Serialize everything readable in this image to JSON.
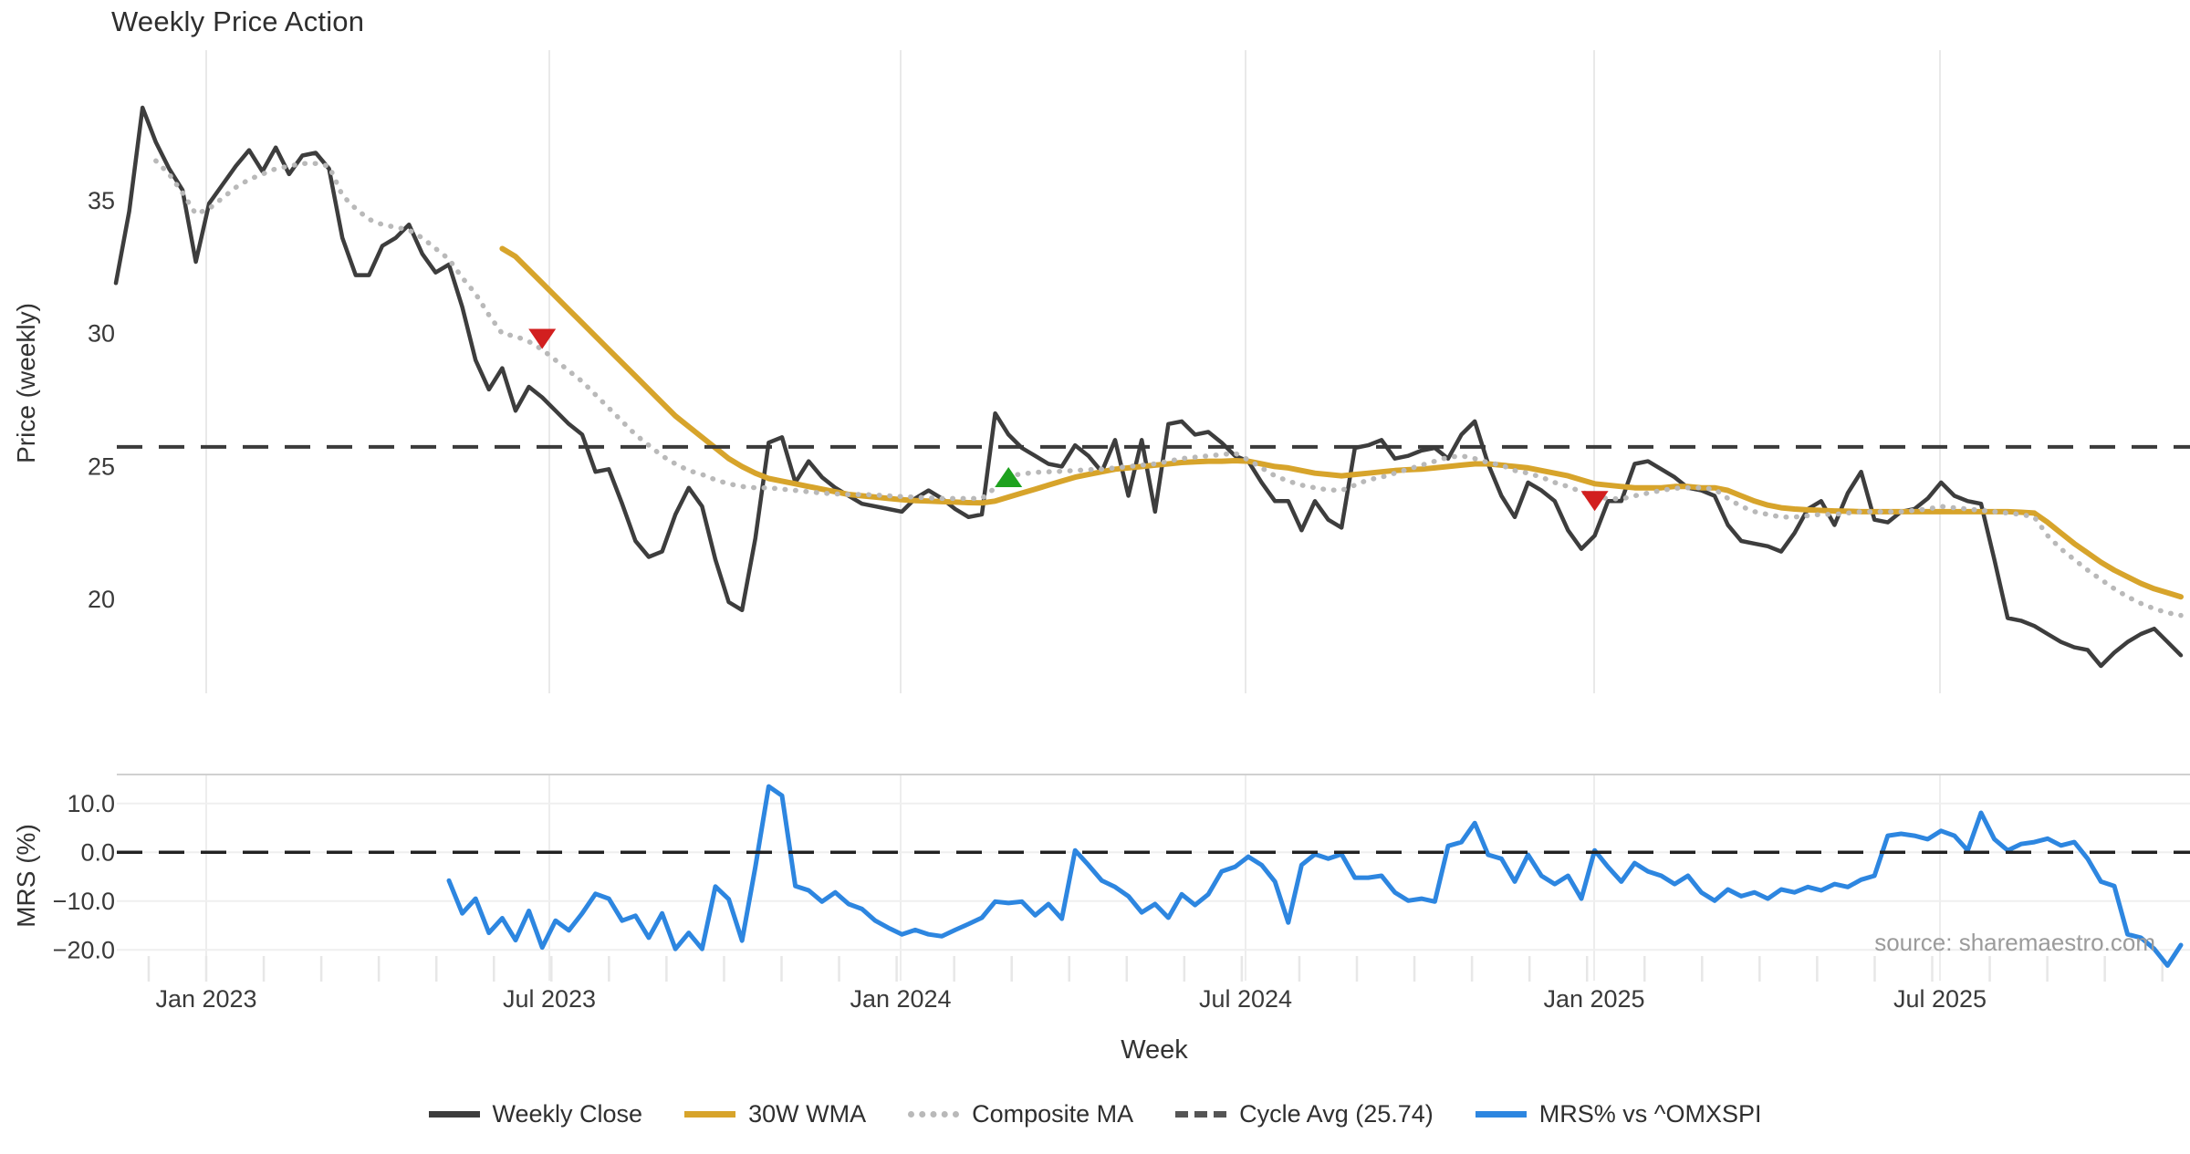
{
  "title": "Weekly Price Action",
  "source_note": "source: sharemaestro.com",
  "chart_data": {
    "type": "line",
    "title": "Weekly Price Action",
    "x_axis": {
      "label": "Week",
      "tick_labels": [
        "Jan 2023",
        "Jul 2023",
        "Jan 2024",
        "Jul 2024",
        "Jan 2025",
        "Jul 2025"
      ],
      "start_date": "2022-11-14",
      "frequency": "weekly",
      "n_points": 156
    },
    "panels": [
      {
        "name": "price-panel",
        "y_label": "Price (weekly)",
        "y_ticks": [
          "35",
          "30",
          "25",
          "20"
        ],
        "y_tick_values": [
          35,
          30,
          25,
          20
        ],
        "ylim": [
          16.5,
          40.7
        ],
        "grid": "vertical-only",
        "series": [
          {
            "name": "Weekly Close",
            "color": "#3d3d3d",
            "style": "solid",
            "width": 4.5,
            "start_index": 0,
            "values": [
              31.9,
              34.6,
              38.5,
              37.2,
              36.2,
              35.4,
              32.7,
              34.9,
              35.6,
              36.3,
              36.9,
              36.1,
              37.0,
              36.0,
              36.7,
              36.8,
              36.2,
              33.6,
              32.2,
              32.2,
              33.3,
              33.6,
              34.1,
              33.0,
              32.3,
              32.6,
              31.0,
              29.0,
              27.9,
              28.7,
              27.1,
              28.0,
              27.6,
              27.1,
              26.6,
              26.2,
              24.8,
              24.9,
              23.6,
              22.2,
              21.6,
              21.8,
              23.2,
              24.2,
              23.5,
              21.5,
              19.9,
              19.6,
              22.3,
              25.9,
              26.1,
              24.4,
              25.2,
              24.6,
              24.2,
              23.9,
              23.6,
              23.5,
              23.4,
              23.3,
              23.8,
              24.1,
              23.8,
              23.4,
              23.1,
              23.2,
              27.0,
              26.2,
              25.7,
              25.4,
              25.1,
              25.0,
              25.8,
              25.4,
              24.8,
              26.0,
              23.9,
              26.0,
              23.3,
              26.6,
              26.7,
              26.2,
              26.3,
              25.9,
              25.4,
              25.2,
              24.4,
              23.7,
              23.7,
              22.6,
              23.7,
              23.0,
              22.7,
              25.7,
              25.8,
              26.0,
              25.3,
              25.4,
              25.6,
              25.7,
              25.3,
              26.2,
              26.7,
              25.1,
              23.9,
              23.1,
              24.4,
              24.1,
              23.7,
              22.6,
              21.9,
              22.4,
              23.7,
              23.7,
              25.1,
              25.2,
              24.9,
              24.6,
              24.2,
              24.1,
              23.9,
              22.8,
              22.2,
              22.1,
              22.0,
              21.8,
              22.5,
              23.4,
              23.7,
              22.8,
              24.0,
              24.8,
              23.0,
              22.9,
              23.3,
              23.4,
              23.8,
              24.4,
              23.9,
              23.7,
              23.6,
              21.5,
              19.3,
              19.2,
              19.0,
              18.7,
              18.4,
              18.2,
              18.1,
              17.5,
              18.0,
              18.4,
              18.7,
              18.9,
              18.4,
              17.9
            ]
          },
          {
            "name": "30W WMA",
            "color": "#d7a42b",
            "style": "solid",
            "width": 6,
            "start_index": 29,
            "values": [
              33.2,
              32.9,
              32.4,
              31.9,
              31.4,
              30.9,
              30.4,
              29.9,
              29.4,
              28.9,
              28.4,
              27.9,
              27.4,
              26.9,
              26.5,
              26.1,
              25.7,
              25.3,
              25.0,
              24.75,
              24.55,
              24.45,
              24.35,
              24.25,
              24.15,
              24.05,
              23.95,
              23.9,
              23.85,
              23.8,
              23.75,
              23.72,
              23.7,
              23.68,
              23.66,
              23.64,
              23.63,
              23.7,
              23.85,
              24.0,
              24.15,
              24.3,
              24.45,
              24.6,
              24.7,
              24.8,
              24.9,
              24.95,
              25.0,
              25.05,
              25.1,
              25.15,
              25.18,
              25.2,
              25.2,
              25.22,
              25.2,
              25.1,
              25.0,
              24.95,
              24.85,
              24.75,
              24.7,
              24.65,
              24.7,
              24.75,
              24.8,
              24.85,
              24.88,
              24.9,
              24.95,
              25.0,
              25.05,
              25.1,
              25.1,
              25.05,
              25.0,
              24.95,
              24.85,
              24.75,
              24.65,
              24.5,
              24.35,
              24.3,
              24.25,
              24.2,
              24.2,
              24.2,
              24.25,
              24.25,
              24.2,
              24.2,
              24.1,
              23.9,
              23.7,
              23.55,
              23.45,
              23.4,
              23.37,
              23.35,
              23.33,
              23.32,
              23.3,
              23.3,
              23.3,
              23.3,
              23.3,
              23.3,
              23.3,
              23.3,
              23.3,
              23.3,
              23.3,
              23.3,
              23.28,
              23.25,
              22.9,
              22.5,
              22.1,
              21.75,
              21.4,
              21.1,
              20.85,
              20.6,
              20.4,
              20.25,
              20.1
            ]
          },
          {
            "name": "Composite MA",
            "color": "#b9b9b9",
            "style": "dotted",
            "width": 4.5,
            "start_index": 3,
            "values": [
              36.5,
              36.0,
              35.3,
              34.5,
              34.7,
              35.1,
              35.5,
              35.8,
              36.0,
              36.2,
              36.3,
              36.4,
              36.4,
              36.3,
              35.2,
              34.7,
              34.3,
              34.1,
              34.0,
              33.9,
              33.6,
              33.2,
              32.8,
              32.1,
              31.5,
              30.7,
              30.0,
              29.9,
              29.7,
              29.4,
              29.0,
              28.6,
              28.2,
              27.7,
              27.2,
              26.7,
              26.2,
              25.8,
              25.4,
              25.1,
              24.85,
              24.7,
              24.5,
              24.35,
              24.25,
              24.2,
              24.2,
              24.15,
              24.1,
              24.05,
              24.0,
              23.97,
              23.95,
              23.95,
              23.93,
              23.9,
              23.87,
              23.85,
              23.82,
              23.8,
              23.8,
              23.8,
              23.8,
              24.2,
              24.65,
              24.72,
              24.78,
              24.8,
              24.82,
              24.85,
              24.88,
              24.9,
              24.95,
              25.0,
              25.05,
              25.1,
              25.2,
              25.3,
              25.35,
              25.4,
              25.45,
              25.5,
              25.25,
              24.95,
              24.65,
              24.45,
              24.3,
              24.2,
              24.12,
              24.1,
              24.3,
              24.5,
              24.6,
              24.75,
              24.9,
              25.05,
              25.2,
              25.35,
              25.4,
              25.3,
              25.15,
              25.05,
              24.85,
              24.75,
              24.6,
              24.4,
              24.25,
              24.05,
              23.85,
              23.8,
              23.78,
              23.9,
              24.0,
              24.1,
              24.18,
              24.2,
              24.2,
              24.15,
              23.8,
              23.5,
              23.3,
              23.2,
              23.1,
              23.1,
              23.15,
              23.2,
              23.2,
              23.25,
              23.3,
              23.3,
              23.3,
              23.3,
              23.35,
              23.4,
              23.5,
              23.45,
              23.4,
              23.35,
              23.3,
              23.25,
              23.2,
              23.1,
              22.4,
              21.9,
              21.5,
              21.1,
              20.75,
              20.4,
              20.1,
              19.85,
              19.65,
              19.5,
              19.4
            ]
          },
          {
            "name": "Cycle Avg (25.74)",
            "color": "#3a3a3a",
            "style": "dashed",
            "width": 4,
            "constant_value": 25.74
          }
        ],
        "markers": [
          {
            "type": "sell-signal",
            "shape": "triangle-down",
            "color": "#d21f1f",
            "week_index": 32,
            "price": 29.8
          },
          {
            "type": "buy-signal",
            "shape": "triangle-up",
            "color": "#1ea21e",
            "week_index": 67,
            "price": 24.6
          },
          {
            "type": "sell-signal",
            "shape": "triangle-down",
            "color": "#d21f1f",
            "week_index": 111,
            "price": 23.7
          }
        ]
      },
      {
        "name": "mrs-panel",
        "y_label": "MRS (%)",
        "y_ticks": [
          "10.0",
          "0.0",
          "−10.0",
          "−20.0"
        ],
        "y_tick_values": [
          10,
          0,
          -10,
          -20
        ],
        "ylim": [
          -26,
          16
        ],
        "grid": "horizontal-and-vertical",
        "series": [
          {
            "name": "MRS% vs ^OMXSPI",
            "color": "#2d86e0",
            "style": "solid",
            "width": 5,
            "start_index": 25,
            "values": [
              -5.8,
              -12.5,
              -9.5,
              -16.5,
              -13.5,
              -18.0,
              -12.0,
              -19.5,
              -14.0,
              -16.0,
              -12.5,
              -8.5,
              -9.5,
              -14.0,
              -13.0,
              -17.5,
              -12.5,
              -19.8,
              -16.5,
              -19.8,
              -7.0,
              -9.6,
              -18.1,
              -3.0,
              13.5,
              11.6,
              -6.9,
              -7.8,
              -10.1,
              -8.2,
              -10.6,
              -11.6,
              -14.0,
              -15.5,
              -16.8,
              -15.9,
              -16.8,
              -17.2,
              -15.9,
              -14.7,
              -13.4,
              -10.1,
              -10.4,
              -10.1,
              -12.9,
              -10.6,
              -13.6,
              0.4,
              -2.6,
              -5.8,
              -7.1,
              -9.0,
              -12.3,
              -10.6,
              -13.4,
              -8.6,
              -10.8,
              -8.6,
              -3.9,
              -3.0,
              -0.9,
              -2.6,
              -6.0,
              -14.4,
              -2.6,
              -0.4,
              -1.3,
              -0.4,
              -5.2,
              -5.2,
              -4.8,
              -8.2,
              -9.9,
              -9.5,
              -10.1,
              1.3,
              2.1,
              6.0,
              -0.5,
              -1.3,
              -6.0,
              -0.5,
              -4.8,
              -6.5,
              -4.8,
              -9.5,
              0.4,
              -3.0,
              -6.0,
              -2.2,
              -3.9,
              -4.8,
              -6.5,
              -4.8,
              -8.2,
              -9.9,
              -7.6,
              -9.0,
              -8.2,
              -9.5,
              -7.6,
              -8.2,
              -7.1,
              -7.8,
              -6.5,
              -7.1,
              -5.6,
              -4.8,
              3.4,
              3.8,
              3.4,
              2.7,
              4.4,
              3.4,
              0.4,
              8.1,
              2.7,
              0.4,
              1.7,
              2.1,
              2.8,
              1.4,
              2.1,
              -1.3,
              -6.0,
              -6.9,
              -16.8,
              -17.5,
              -19.8,
              -23.2,
              -19.0
            ]
          },
          {
            "name": "Zero line",
            "color": "#222222",
            "style": "dashed",
            "width": 3.5,
            "constant_value": 0
          }
        ]
      }
    ],
    "legend": [
      {
        "label": "Weekly Close",
        "color": "#3d3d3d",
        "style": "solid"
      },
      {
        "label": "30W WMA",
        "color": "#d7a42b",
        "style": "solid"
      },
      {
        "label": "Composite MA",
        "color": "#b9b9b9",
        "style": "dotted"
      },
      {
        "label": "Cycle Avg (25.74)",
        "color": "#555555",
        "style": "dashed"
      },
      {
        "label": "MRS% vs ^OMXSPI",
        "color": "#2d86e0",
        "style": "solid"
      }
    ],
    "source": "source: sharemaestro.com"
  }
}
